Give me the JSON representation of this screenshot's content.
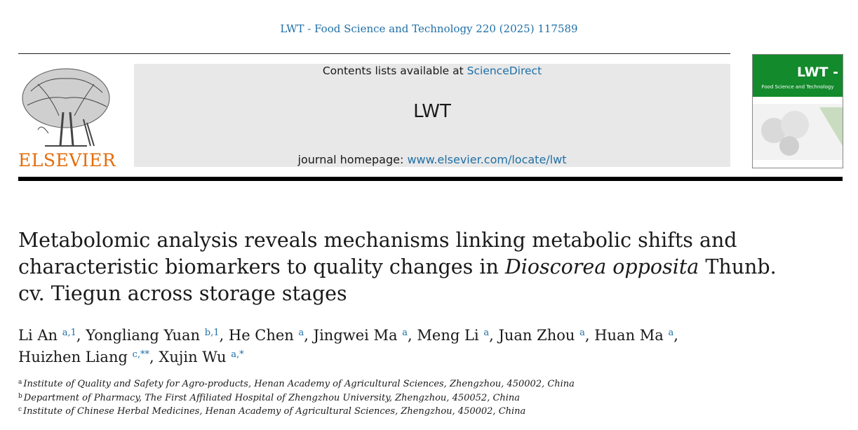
{
  "header": {
    "citation": "LWT - Food Science and Technology 220 (2025) 117589",
    "contents_prefix": "Contents lists available at ",
    "contents_link": "ScienceDirect",
    "journal_name": "LWT",
    "homepage_prefix": "journal homepage: ",
    "homepage_link": "www.elsevier.com/locate/lwt",
    "publisher_logo_text": "ELSEVIER",
    "cover_title": "LWT -",
    "cover_subtitle": "Food Science and Technology"
  },
  "article": {
    "title_part1": "Metabolomic analysis reveals mechanisms linking metabolic shifts and characteristic biomarkers to quality changes in ",
    "title_italic": "Dioscorea opposita",
    "title_part2": " Thunb. cv. Tiegun across storage stages",
    "authors": [
      {
        "name": "Li An",
        "sup": "a,1",
        "sep": ", "
      },
      {
        "name": "Yongliang Yuan",
        "sup": "b,1",
        "sep": ", "
      },
      {
        "name": "He Chen",
        "sup": "a",
        "sep": ", "
      },
      {
        "name": "Jingwei Ma",
        "sup": "a",
        "sep": ", "
      },
      {
        "name": "Meng Li",
        "sup": "a",
        "sep": ", "
      },
      {
        "name": "Juan Zhou",
        "sup": "a",
        "sep": ", "
      },
      {
        "name": "Huan Ma",
        "sup": "a",
        "sep": ", "
      },
      {
        "name": "Huizhen Liang",
        "sup": "c,**",
        "sep": ", "
      },
      {
        "name": "Xujin Wu",
        "sup": "a,*",
        "sep": ""
      }
    ],
    "affiliations": [
      {
        "label": "a",
        "text": "Institute of Quality and Safety for Agro-products, Henan Academy of Agricultural Sciences, Zhengzhou, 450002, China"
      },
      {
        "label": "b",
        "text": "Department of Pharmacy, The First Affiliated Hospital of Zhengzhou University, Zhengzhou, 450052, China"
      },
      {
        "label": "c",
        "text": "Institute of Chinese Herbal Medicines, Henan Academy of Agricultural Sciences, Zhengzhou, 450002, China"
      }
    ]
  },
  "colors": {
    "link": "#1f6fa6",
    "elsevier_orange": "#e36c0a",
    "cover_green": "#138a2c",
    "banner_gray": "#e8e8e8"
  }
}
